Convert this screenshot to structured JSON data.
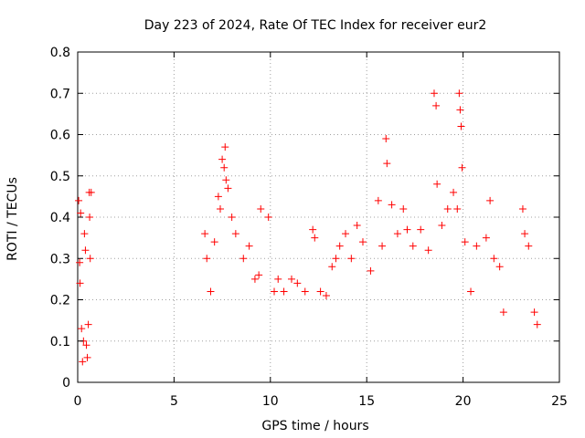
{
  "chart_data": {
    "type": "scatter",
    "title": "Day 223 of 2024, Rate Of TEC Index for receiver eur2",
    "xlabel": "GPS time / hours",
    "ylabel": "ROTI / TECUs",
    "xlim": [
      0,
      25
    ],
    "ylim": [
      0,
      0.8
    ],
    "x_ticks": [
      "0",
      "5",
      "10",
      "15",
      "20",
      "25"
    ],
    "y_ticks": [
      "0",
      "0.1",
      "0.2",
      "0.3",
      "0.4",
      "0.5",
      "0.6",
      "0.7",
      "0.8"
    ],
    "grid": true,
    "marker": "+",
    "series": [
      {
        "color": "#ff0000",
        "points": [
          [
            0.05,
            0.44
          ],
          [
            0.1,
            0.29
          ],
          [
            0.12,
            0.24
          ],
          [
            0.15,
            0.41
          ],
          [
            0.2,
            0.13
          ],
          [
            0.25,
            0.05
          ],
          [
            0.3,
            0.1
          ],
          [
            0.35,
            0.36
          ],
          [
            0.4,
            0.32
          ],
          [
            0.45,
            0.09
          ],
          [
            0.5,
            0.06
          ],
          [
            0.55,
            0.14
          ],
          [
            0.6,
            0.46
          ],
          [
            0.62,
            0.4
          ],
          [
            0.65,
            0.3
          ],
          [
            0.7,
            0.46
          ],
          [
            6.6,
            0.36
          ],
          [
            6.7,
            0.3
          ],
          [
            6.9,
            0.22
          ],
          [
            7.1,
            0.34
          ],
          [
            7.3,
            0.45
          ],
          [
            7.4,
            0.42
          ],
          [
            7.5,
            0.54
          ],
          [
            7.6,
            0.52
          ],
          [
            7.65,
            0.57
          ],
          [
            7.7,
            0.49
          ],
          [
            7.8,
            0.47
          ],
          [
            8.0,
            0.4
          ],
          [
            8.2,
            0.36
          ],
          [
            8.6,
            0.3
          ],
          [
            8.9,
            0.33
          ],
          [
            9.2,
            0.25
          ],
          [
            9.4,
            0.26
          ],
          [
            9.5,
            0.42
          ],
          [
            9.9,
            0.4
          ],
          [
            10.2,
            0.22
          ],
          [
            10.4,
            0.25
          ],
          [
            10.7,
            0.22
          ],
          [
            11.1,
            0.25
          ],
          [
            11.4,
            0.24
          ],
          [
            11.8,
            0.22
          ],
          [
            12.2,
            0.37
          ],
          [
            12.3,
            0.35
          ],
          [
            12.6,
            0.22
          ],
          [
            12.9,
            0.21
          ],
          [
            13.2,
            0.28
          ],
          [
            13.4,
            0.3
          ],
          [
            13.6,
            0.33
          ],
          [
            13.9,
            0.36
          ],
          [
            14.2,
            0.3
          ],
          [
            14.5,
            0.38
          ],
          [
            14.8,
            0.34
          ],
          [
            15.2,
            0.27
          ],
          [
            15.6,
            0.44
          ],
          [
            15.8,
            0.33
          ],
          [
            16.0,
            0.59
          ],
          [
            16.05,
            0.53
          ],
          [
            16.3,
            0.43
          ],
          [
            16.6,
            0.36
          ],
          [
            16.9,
            0.42
          ],
          [
            17.1,
            0.37
          ],
          [
            17.4,
            0.33
          ],
          [
            17.8,
            0.37
          ],
          [
            18.2,
            0.32
          ],
          [
            18.5,
            0.7
          ],
          [
            18.6,
            0.67
          ],
          [
            18.65,
            0.48
          ],
          [
            18.9,
            0.38
          ],
          [
            19.2,
            0.42
          ],
          [
            19.5,
            0.46
          ],
          [
            19.7,
            0.42
          ],
          [
            19.8,
            0.7
          ],
          [
            19.85,
            0.66
          ],
          [
            19.9,
            0.62
          ],
          [
            19.95,
            0.52
          ],
          [
            20.1,
            0.34
          ],
          [
            20.4,
            0.22
          ],
          [
            20.7,
            0.33
          ],
          [
            21.2,
            0.35
          ],
          [
            21.4,
            0.44
          ],
          [
            21.6,
            0.3
          ],
          [
            21.9,
            0.28
          ],
          [
            22.1,
            0.17
          ],
          [
            23.1,
            0.42
          ],
          [
            23.2,
            0.36
          ],
          [
            23.4,
            0.33
          ],
          [
            23.7,
            0.17
          ],
          [
            23.85,
            0.14
          ]
        ]
      }
    ]
  }
}
